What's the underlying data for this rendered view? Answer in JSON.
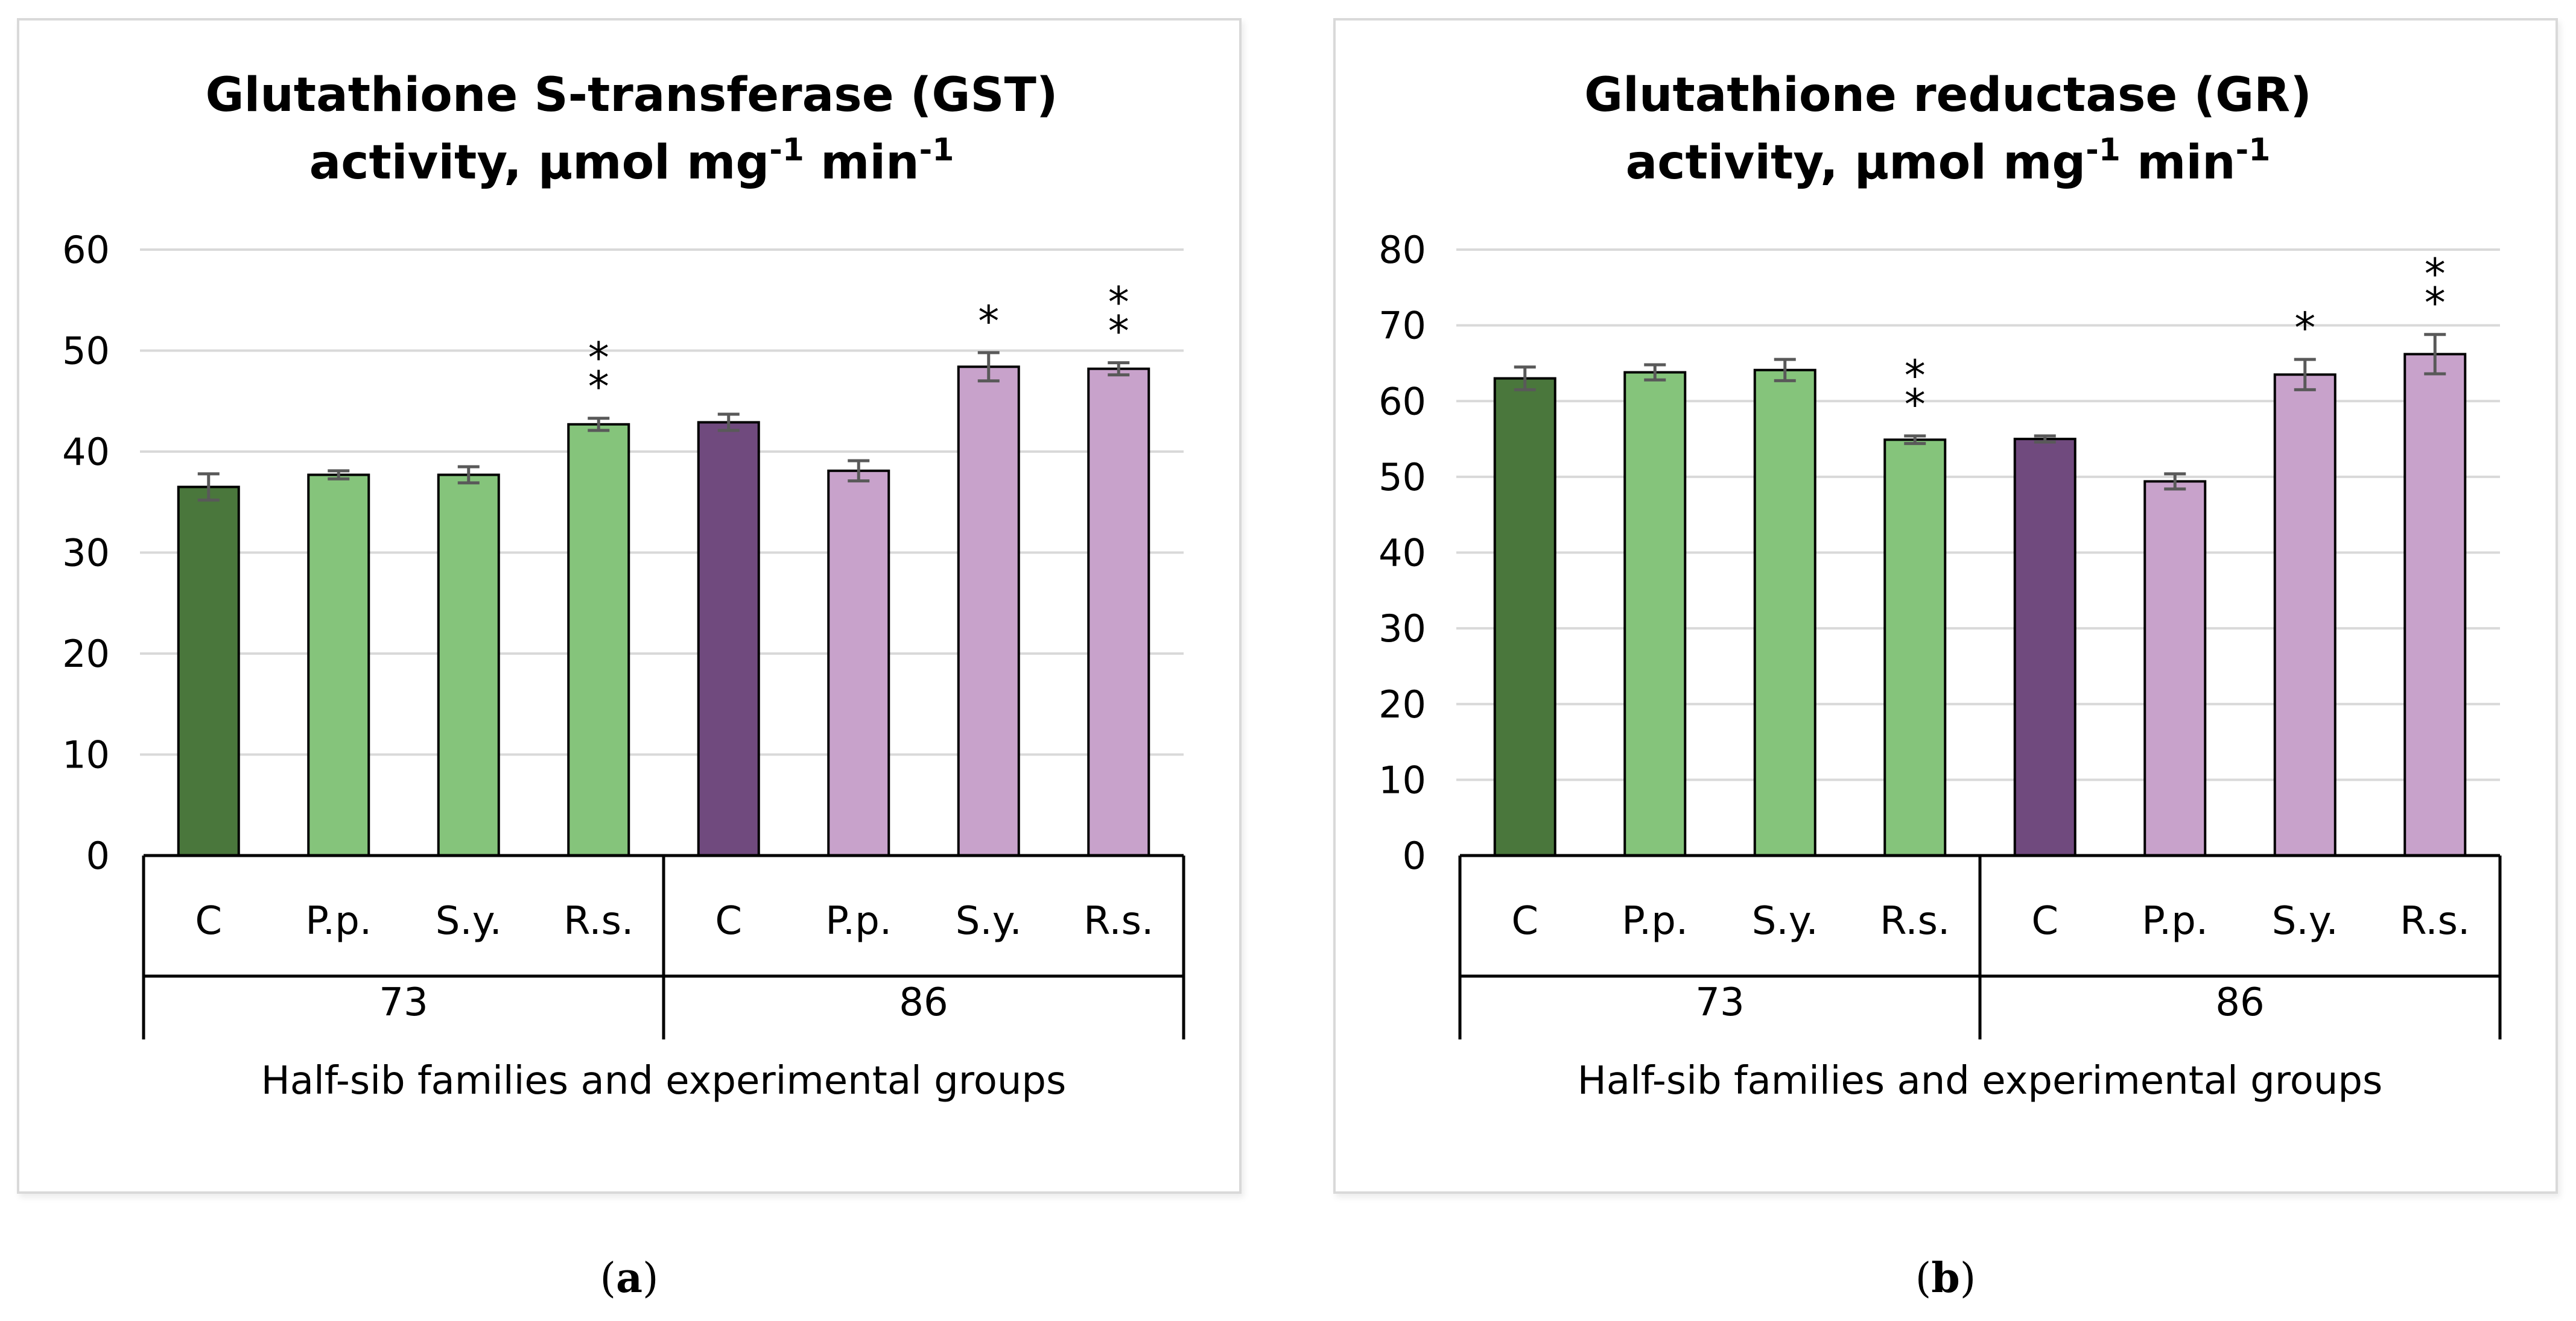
{
  "chart_data": [
    {
      "type": "bar",
      "panel_label": "a",
      "title_main": "Glutathione S-transferase (GST)",
      "title_units": [
        "activity, µmol mg",
        "-1",
        " min",
        "-1"
      ],
      "xlabel": "Half-sib families and experimental groups",
      "ylabel": "",
      "ylim": [
        0,
        60
      ],
      "yticks": [
        0,
        10,
        20,
        30,
        40,
        50,
        60
      ],
      "grid": true,
      "groups": [
        "73",
        "86"
      ],
      "categories": [
        "C",
        "P.p.",
        "S.y.",
        "R.s.",
        "C",
        "P.p.",
        "S.y.",
        "R.s."
      ],
      "values": [
        36.5,
        37.7,
        37.7,
        42.7,
        42.9,
        38.1,
        48.4,
        48.2
      ],
      "errors": [
        1.3,
        0.4,
        0.8,
        0.6,
        0.8,
        1.0,
        1.4,
        0.6
      ],
      "significance": [
        "",
        "",
        "",
        "**",
        "",
        "",
        "*",
        "**"
      ],
      "colors": [
        "#4a773c",
        "#85c47b",
        "#85c47b",
        "#85c47b",
        "#704a7e",
        "#c8a2cb",
        "#c8a2cb",
        "#c8a2cb"
      ]
    },
    {
      "type": "bar",
      "panel_label": "b",
      "title_main": "Glutathione reductase (GR)",
      "title_units": [
        "activity, µmol mg",
        "-1",
        " min",
        "-1"
      ],
      "xlabel": "Half-sib families and experimental groups",
      "ylabel": "",
      "ylim": [
        0,
        80
      ],
      "yticks": [
        0,
        10,
        20,
        30,
        40,
        50,
        60,
        70,
        80
      ],
      "grid": true,
      "groups": [
        "73",
        "86"
      ],
      "categories": [
        "C",
        "P.p.",
        "S.y.",
        "R.s.",
        "C",
        "P.p.",
        "S.y.",
        "R.s."
      ],
      "values": [
        63.0,
        63.8,
        64.1,
        54.9,
        55.0,
        49.4,
        63.5,
        66.2
      ],
      "errors": [
        1.5,
        1.0,
        1.4,
        0.5,
        0.4,
        1.0,
        2.0,
        2.6
      ],
      "significance": [
        "",
        "",
        "",
        "**",
        "",
        "",
        "*",
        "**"
      ],
      "colors": [
        "#4a773c",
        "#85c47b",
        "#85c47b",
        "#85c47b",
        "#704a7e",
        "#c8a2cb",
        "#c8a2cb",
        "#c8a2cb"
      ]
    }
  ]
}
